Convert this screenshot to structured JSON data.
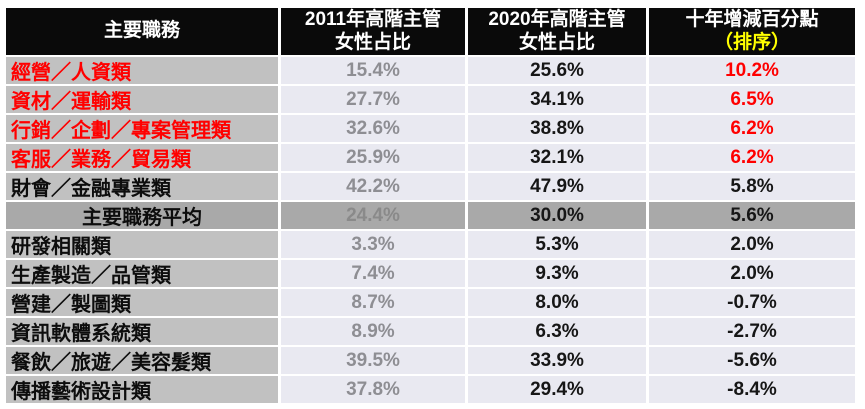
{
  "table": {
    "headers": {
      "job": "主要職務",
      "y2011_line1": "2011年高階主管",
      "y2011_line2": "女性占比",
      "y2020_line1": "2020年高階主管",
      "y2020_line2": "女性占比",
      "diff_line1": "十年增減百分點",
      "diff_line2": "（排序）"
    },
    "rows": [
      {
        "label": "經營／人資類",
        "v2011": "15.4%",
        "v2020": "25.6%",
        "diff": "10.2%",
        "emphasis": true,
        "average": false
      },
      {
        "label": "資材／運輸類",
        "v2011": "27.7%",
        "v2020": "34.1%",
        "diff": "6.5%",
        "emphasis": true,
        "average": false
      },
      {
        "label": "行銷／企劃／專案管理類",
        "v2011": "32.6%",
        "v2020": "38.8%",
        "diff": "6.2%",
        "emphasis": true,
        "average": false
      },
      {
        "label": "客服／業務／貿易類",
        "v2011": "25.9%",
        "v2020": "32.1%",
        "diff": "6.2%",
        "emphasis": true,
        "average": false
      },
      {
        "label": "財會／金融專業類",
        "v2011": "42.2%",
        "v2020": "47.9%",
        "diff": "5.8%",
        "emphasis": false,
        "average": false
      },
      {
        "label": "主要職務平均",
        "v2011": "24.4%",
        "v2020": "30.0%",
        "diff": "5.6%",
        "emphasis": false,
        "average": true
      },
      {
        "label": "研發相關類",
        "v2011": "3.3%",
        "v2020": "5.3%",
        "diff": "2.0%",
        "emphasis": false,
        "average": false
      },
      {
        "label": "生產製造／品管類",
        "v2011": "7.4%",
        "v2020": "9.3%",
        "diff": "2.0%",
        "emphasis": false,
        "average": false
      },
      {
        "label": "營建／製圖類",
        "v2011": "8.7%",
        "v2020": "8.0%",
        "diff": "-0.7%",
        "emphasis": false,
        "average": false
      },
      {
        "label": "資訊軟體系統類",
        "v2011": "8.9%",
        "v2020": "6.3%",
        "diff": "-2.7%",
        "emphasis": false,
        "average": false
      },
      {
        "label": "餐飲／旅遊／美容髮類",
        "v2011": "39.5%",
        "v2020": "33.9%",
        "diff": "-5.6%",
        "emphasis": false,
        "average": false
      },
      {
        "label": "傳播藝術設計類",
        "v2011": "37.8%",
        "v2020": "29.4%",
        "diff": "-8.4%",
        "emphasis": false,
        "average": false
      }
    ]
  },
  "colors": {
    "header_bg": "#0a0a0a",
    "header_text": "#ffffff",
    "sort_note_yellow": "#ffff00",
    "emphasis_red": "#ff0000",
    "label_cell_bg": "#c1c1c1",
    "value_cell_bg": "#e9e9f1",
    "average_row_bg": "#a9a9a9",
    "muted_value_text": "#8e8e93",
    "value_text": "#161616"
  },
  "chart_data": {
    "type": "table",
    "title": "",
    "columns": [
      "主要職務",
      "2011年高階主管女性占比",
      "2020年高階主管女性占比",
      "十年增減百分點（排序）"
    ],
    "rows": [
      [
        "經營／人資類",
        15.4,
        25.6,
        10.2
      ],
      [
        "資材／運輸類",
        27.7,
        34.1,
        6.5
      ],
      [
        "行銷／企劃／專案管理類",
        32.6,
        38.8,
        6.2
      ],
      [
        "客服／業務／貿易類",
        25.9,
        32.1,
        6.2
      ],
      [
        "財會／金融專業類",
        42.2,
        47.9,
        5.8
      ],
      [
        "主要職務平均",
        24.4,
        30.0,
        5.6
      ],
      [
        "研發相關類",
        3.3,
        5.3,
        2.0
      ],
      [
        "生產製造／品管類",
        7.4,
        9.3,
        2.0
      ],
      [
        "營建／製圖類",
        8.7,
        8.0,
        -0.7
      ],
      [
        "資訊軟體系統類",
        8.9,
        6.3,
        -2.7
      ],
      [
        "餐飲／旅遊／美容髮類",
        39.5,
        33.9,
        -5.6
      ],
      [
        "傳播藝術設計類",
        37.8,
        29.4,
        -8.4
      ]
    ],
    "sorted_by": "十年增減百分點"
  }
}
